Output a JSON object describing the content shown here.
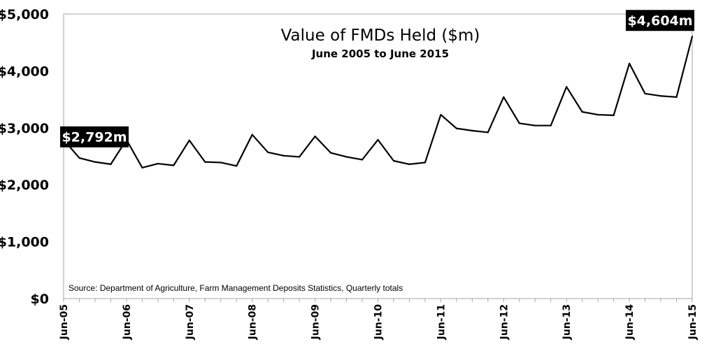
{
  "chart_data": {
    "type": "line",
    "title": "Value of FMDs Held ($m)",
    "subtitle": "June 2005 to June 2015",
    "source": "Source: Department of Agriculture, Farm Management Deposits Statistics, Quarterly totals",
    "ylim": [
      0,
      5000
    ],
    "y_ticks": [
      "$0",
      "$1,000",
      "$2,000",
      "$3,000",
      "$4,000",
      "$5,000"
    ],
    "y_tick_values": [
      0,
      1000,
      2000,
      3000,
      4000,
      5000
    ],
    "x_tick_labels": [
      "Jun-05",
      "Jun-06",
      "Jun-07",
      "Jun-08",
      "Jun-09",
      "Jun-10",
      "Jun-11",
      "Jun-12",
      "Jun-13",
      "Jun-14",
      "Jun-15"
    ],
    "x_tick_quarter_index": [
      0,
      4,
      8,
      12,
      16,
      20,
      24,
      28,
      32,
      36,
      40
    ],
    "series": [
      {
        "values": [
          2792,
          2470,
          2400,
          2360,
          2790,
          2300,
          2370,
          2340,
          2780,
          2400,
          2390,
          2330,
          2880,
          2570,
          2510,
          2490,
          2850,
          2560,
          2490,
          2440,
          2790,
          2420,
          2360,
          2390,
          3230,
          2990,
          2950,
          2920,
          3540,
          3080,
          3040,
          3040,
          3720,
          3280,
          3230,
          3220,
          4130,
          3600,
          3560,
          3540,
          4604
        ]
      }
    ],
    "annotations": [
      {
        "text": "$2,792m",
        "index": 0
      },
      {
        "text": "$4,604m",
        "index": 40
      }
    ],
    "grid": false,
    "line_color": "#000000"
  }
}
